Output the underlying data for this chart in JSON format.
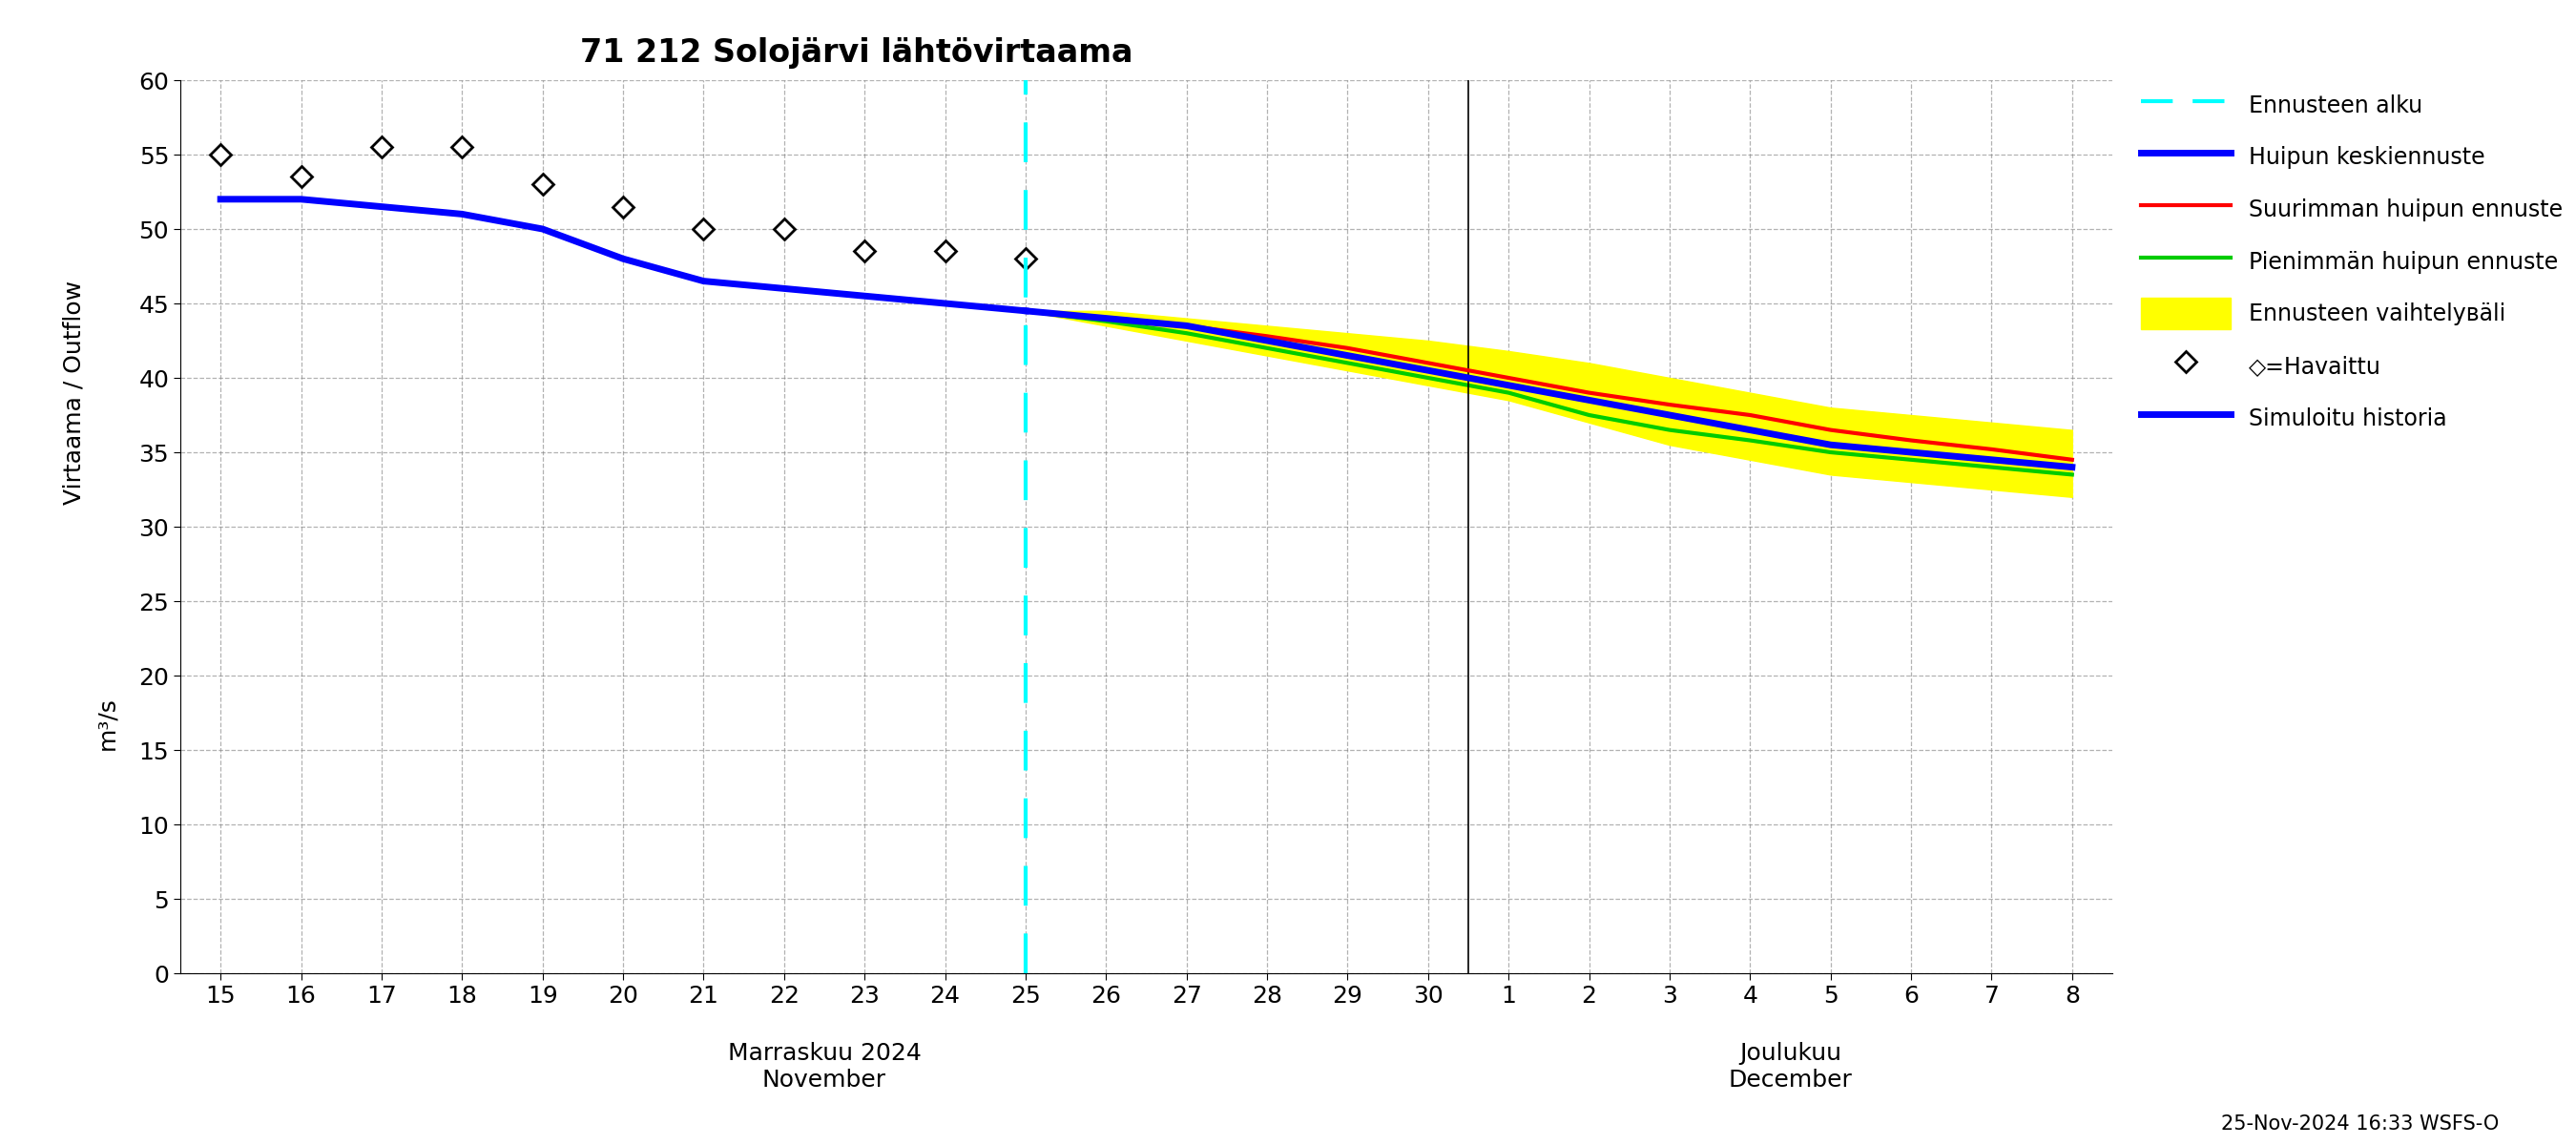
{
  "title": "71 212 Solojärvi lähtövirtaama",
  "ylabel_left": "Virtaama / Outflow",
  "ylabel_right": "m³/s",
  "xlabel_nov": "Marraskuu 2024\nNovember",
  "xlabel_dec": "Joulukuu\nDecember",
  "timestamp": "25-Nov-2024 16:33 WSFS-O",
  "ylim": [
    0,
    60
  ],
  "yticks": [
    0,
    5,
    10,
    15,
    20,
    25,
    30,
    35,
    40,
    45,
    50,
    55,
    60
  ],
  "observed_x": [
    15,
    16,
    17,
    18,
    19,
    20,
    21,
    22,
    23,
    24,
    25
  ],
  "observed_y": [
    55.0,
    53.5,
    55.5,
    55.5,
    53.0,
    51.5,
    50.0,
    50.0,
    48.5,
    48.5,
    48.0
  ],
  "sim_hist_x": [
    15,
    16,
    17,
    18,
    19,
    20,
    21,
    22,
    23,
    24,
    25
  ],
  "sim_hist_y": [
    52.0,
    52.0,
    51.5,
    51.0,
    50.0,
    48.0,
    46.5,
    46.0,
    45.5,
    45.0,
    44.5
  ],
  "mean_forecast_nov_x": [
    25,
    26,
    27,
    28,
    29,
    30
  ],
  "mean_forecast_nov_y": [
    44.5,
    44.0,
    43.5,
    42.5,
    41.5,
    40.5
  ],
  "mean_forecast_dec_x": [
    1,
    2,
    3,
    4,
    5,
    6,
    7,
    8
  ],
  "mean_forecast_dec_y": [
    39.5,
    38.5,
    37.5,
    36.5,
    35.5,
    35.0,
    34.5,
    34.0
  ],
  "max_forecast_nov_x": [
    25,
    26,
    27,
    28,
    29,
    30
  ],
  "max_forecast_nov_y": [
    44.5,
    44.0,
    43.5,
    42.8,
    42.0,
    41.0
  ],
  "max_forecast_dec_x": [
    1,
    2,
    3,
    4,
    5,
    6,
    7,
    8
  ],
  "max_forecast_dec_y": [
    40.0,
    39.0,
    38.2,
    37.5,
    36.5,
    35.8,
    35.2,
    34.5
  ],
  "min_forecast_nov_x": [
    25,
    26,
    27,
    28,
    29,
    30
  ],
  "min_forecast_nov_y": [
    44.5,
    43.8,
    43.0,
    42.0,
    41.0,
    40.0
  ],
  "min_forecast_dec_x": [
    1,
    2,
    3,
    4,
    5,
    6,
    7,
    8
  ],
  "min_forecast_dec_y": [
    39.0,
    37.5,
    36.5,
    35.8,
    35.0,
    34.5,
    34.0,
    33.5
  ],
  "band_upper_nov_x": [
    25,
    26,
    27,
    28,
    29,
    30
  ],
  "band_upper_nov_y": [
    44.5,
    44.5,
    44.0,
    43.5,
    43.0,
    42.5
  ],
  "band_upper_dec_x": [
    1,
    2,
    3,
    4,
    5,
    6,
    7,
    8
  ],
  "band_upper_dec_y": [
    41.8,
    41.0,
    40.0,
    39.0,
    38.0,
    37.5,
    37.0,
    36.5
  ],
  "band_lower_nov_x": [
    25,
    26,
    27,
    28,
    29,
    30
  ],
  "band_lower_nov_y": [
    44.5,
    43.5,
    42.5,
    41.5,
    40.5,
    39.5
  ],
  "band_lower_dec_x": [
    1,
    2,
    3,
    4,
    5,
    6,
    7,
    8
  ],
  "band_lower_dec_y": [
    38.5,
    37.0,
    35.5,
    34.5,
    33.5,
    33.0,
    32.5,
    32.0
  ],
  "color_sim_hist": "#0000FF",
  "color_mean_forecast": "#0000FF",
  "color_max_forecast": "#FF0000",
  "color_min_forecast": "#00CC00",
  "color_band": "#FFFF00",
  "color_forecast_line": "#00FFFF",
  "color_observed": "#000000",
  "legend_entries": [
    "Ennusteen alku",
    "Huipun keskiennuste",
    "Suurimman huipun ennuste",
    "Pienimmän huipun ennuste",
    "Ennusteen vaihtelувäli",
    "◇=Havaittu",
    "Simuloitu historia"
  ]
}
